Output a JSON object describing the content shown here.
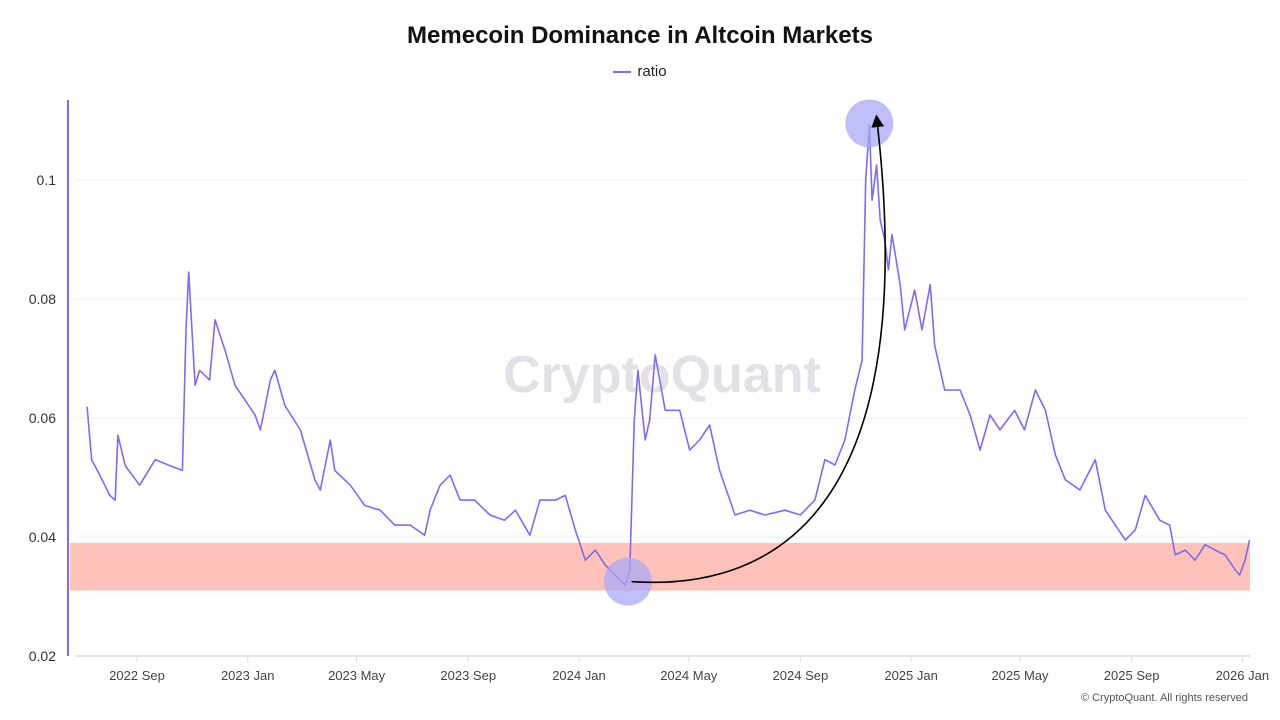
{
  "chart_data": {
    "type": "line",
    "title": "Memecoin Dominance in Altcoin Markets",
    "watermark": "CryptoQuant",
    "copyright": "© CryptoQuant. All rights reserved",
    "legend": {
      "position": "top-center",
      "entries": [
        "ratio"
      ]
    },
    "xlabel": "",
    "ylabel": "",
    "ylim": [
      0.02,
      0.113
    ],
    "y_ticks": [
      "0.02",
      "0.04",
      "0.06",
      "0.08",
      "0.1"
    ],
    "y_tick_values": [
      0.02,
      0.04,
      0.06,
      0.08,
      0.1
    ],
    "x_ticks": [
      "2022 Sep",
      "2023 Jan",
      "2023 May",
      "2023 Sep",
      "2024 Jan",
      "2024 May",
      "2024 Sep",
      "2025 Jan",
      "2025 May",
      "2025 Sep",
      "2026 Jan"
    ],
    "x_tick_dates": [
      "2022-09-01",
      "2023-01-01",
      "2023-05-01",
      "2023-09-01",
      "2024-01-01",
      "2024-05-01",
      "2024-09-01",
      "2025-01-01",
      "2025-05-01",
      "2025-09-01",
      "2026-01-01"
    ],
    "grid": true,
    "colors": {
      "series": "#7b6cf0",
      "band": "#ffc2b8",
      "circle": "#a9a8f6",
      "arrow": "#000000"
    },
    "annotations": {
      "band": {
        "y_range": [
          0.031,
          0.039
        ]
      },
      "circles": [
        {
          "date": "2024-02-24",
          "value": 0.0325
        },
        {
          "date": "2024-11-16",
          "value": 0.1095
        }
      ],
      "arrow": {
        "from": {
          "date": "2024-02-28",
          "value": 0.0325
        },
        "to": {
          "date": "2024-11-24",
          "value": 0.1105
        }
      }
    },
    "series": [
      {
        "name": "ratio",
        "points": [
          [
            "2022-07-08",
            0.0619
          ],
          [
            "2022-07-13",
            0.053
          ],
          [
            "2022-07-22",
            0.0504
          ],
          [
            "2022-08-02",
            0.047
          ],
          [
            "2022-08-08",
            0.0462
          ],
          [
            "2022-08-11",
            0.0571
          ],
          [
            "2022-08-19",
            0.052
          ],
          [
            "2022-09-04",
            0.0487
          ],
          [
            "2022-09-21",
            0.053
          ],
          [
            "2022-10-07",
            0.052
          ],
          [
            "2022-10-21",
            0.0512
          ],
          [
            "2022-10-25",
            0.0748
          ],
          [
            "2022-10-28",
            0.0845
          ],
          [
            "2022-11-04",
            0.0655
          ],
          [
            "2022-11-09",
            0.068
          ],
          [
            "2022-11-20",
            0.0664
          ],
          [
            "2022-11-26",
            0.0765
          ],
          [
            "2022-12-07",
            0.0714
          ],
          [
            "2022-12-18",
            0.0655
          ],
          [
            "2022-12-29",
            0.063
          ],
          [
            "2023-01-09",
            0.0605
          ],
          [
            "2023-01-15",
            0.058
          ],
          [
            "2023-01-26",
            0.0664
          ],
          [
            "2023-01-31",
            0.068
          ],
          [
            "2023-02-11",
            0.0621
          ],
          [
            "2023-02-28",
            0.058
          ],
          [
            "2023-03-16",
            0.0496
          ],
          [
            "2023-03-22",
            0.0479
          ],
          [
            "2023-04-02",
            0.0563
          ],
          [
            "2023-04-07",
            0.0512
          ],
          [
            "2023-04-24",
            0.0487
          ],
          [
            "2023-05-10",
            0.0453
          ],
          [
            "2023-05-27",
            0.0445
          ],
          [
            "2023-06-12",
            0.042
          ],
          [
            "2023-06-29",
            0.042
          ],
          [
            "2023-07-15",
            0.0403
          ],
          [
            "2023-07-21",
            0.0445
          ],
          [
            "2023-08-01",
            0.0487
          ],
          [
            "2023-08-12",
            0.0504
          ],
          [
            "2023-08-23",
            0.0462
          ],
          [
            "2023-09-08",
            0.0462
          ],
          [
            "2023-09-25",
            0.0437
          ],
          [
            "2023-10-11",
            0.0428
          ],
          [
            "2023-10-23",
            0.0445
          ],
          [
            "2023-11-08",
            0.0403
          ],
          [
            "2023-11-19",
            0.0462
          ],
          [
            "2023-12-06",
            0.0462
          ],
          [
            "2023-12-17",
            0.047
          ],
          [
            "2023-12-28",
            0.0412
          ],
          [
            "2024-01-08",
            0.0361
          ],
          [
            "2024-01-19",
            0.0378
          ],
          [
            "2024-01-30",
            0.0353
          ],
          [
            "2024-02-10",
            0.0336
          ],
          [
            "2024-02-21",
            0.0319
          ],
          [
            "2024-02-26",
            0.0345
          ],
          [
            "2024-03-02",
            0.0597
          ],
          [
            "2024-03-06",
            0.068
          ],
          [
            "2024-03-14",
            0.0563
          ],
          [
            "2024-03-19",
            0.0597
          ],
          [
            "2024-03-25",
            0.0706
          ],
          [
            "2024-04-05",
            0.0613
          ],
          [
            "2024-04-21",
            0.0613
          ],
          [
            "2024-05-02",
            0.0546
          ],
          [
            "2024-05-13",
            0.0563
          ],
          [
            "2024-05-24",
            0.0588
          ],
          [
            "2024-06-04",
            0.0512
          ],
          [
            "2024-06-21",
            0.0437
          ],
          [
            "2024-07-07",
            0.0445
          ],
          [
            "2024-07-24",
            0.0437
          ],
          [
            "2024-08-15",
            0.0445
          ],
          [
            "2024-09-01",
            0.0437
          ],
          [
            "2024-09-17",
            0.0462
          ],
          [
            "2024-09-28",
            0.053
          ],
          [
            "2024-10-09",
            0.0521
          ],
          [
            "2024-10-20",
            0.0563
          ],
          [
            "2024-10-31",
            0.0647
          ],
          [
            "2024-11-08",
            0.0697
          ],
          [
            "2024-11-12",
            0.1
          ],
          [
            "2024-11-16",
            0.1092
          ],
          [
            "2024-11-19",
            0.0966
          ],
          [
            "2024-11-24",
            0.1025
          ],
          [
            "2024-11-28",
            0.0933
          ],
          [
            "2024-12-03",
            0.0899
          ],
          [
            "2024-12-07",
            0.0849
          ],
          [
            "2024-12-11",
            0.0908
          ],
          [
            "2024-12-20",
            0.0824
          ],
          [
            "2024-12-25",
            0.0748
          ],
          [
            "2025-01-05",
            0.0815
          ],
          [
            "2025-01-13",
            0.0748
          ],
          [
            "2025-01-22",
            0.0824
          ],
          [
            "2025-01-27",
            0.0722
          ],
          [
            "2025-02-07",
            0.0647
          ],
          [
            "2025-02-24",
            0.0647
          ],
          [
            "2025-03-07",
            0.0605
          ],
          [
            "2025-03-18",
            0.0546
          ],
          [
            "2025-03-29",
            0.0605
          ],
          [
            "2025-04-09",
            0.058
          ],
          [
            "2025-04-25",
            0.0613
          ],
          [
            "2025-05-06",
            0.058
          ],
          [
            "2025-05-18",
            0.0647
          ],
          [
            "2025-05-29",
            0.0613
          ],
          [
            "2025-06-09",
            0.0538
          ],
          [
            "2025-06-20",
            0.0496
          ],
          [
            "2025-07-06",
            0.0479
          ],
          [
            "2025-07-23",
            0.053
          ],
          [
            "2025-08-03",
            0.0445
          ],
          [
            "2025-08-14",
            0.042
          ],
          [
            "2025-08-25",
            0.0395
          ],
          [
            "2025-09-05",
            0.0412
          ],
          [
            "2025-09-16",
            0.047
          ],
          [
            "2025-10-02",
            0.0428
          ],
          [
            "2025-10-13",
            0.042
          ],
          [
            "2025-10-19",
            0.037
          ],
          [
            "2025-10-30",
            0.0378
          ],
          [
            "2025-11-10",
            0.0361
          ],
          [
            "2025-11-21",
            0.0387
          ],
          [
            "2025-12-02",
            0.0378
          ],
          [
            "2025-12-13",
            0.037
          ],
          [
            "2025-12-24",
            0.0345
          ],
          [
            "2025-12-29",
            0.0336
          ],
          [
            "2026-01-04",
            0.0361
          ],
          [
            "2026-01-09",
            0.0395
          ]
        ]
      }
    ]
  }
}
